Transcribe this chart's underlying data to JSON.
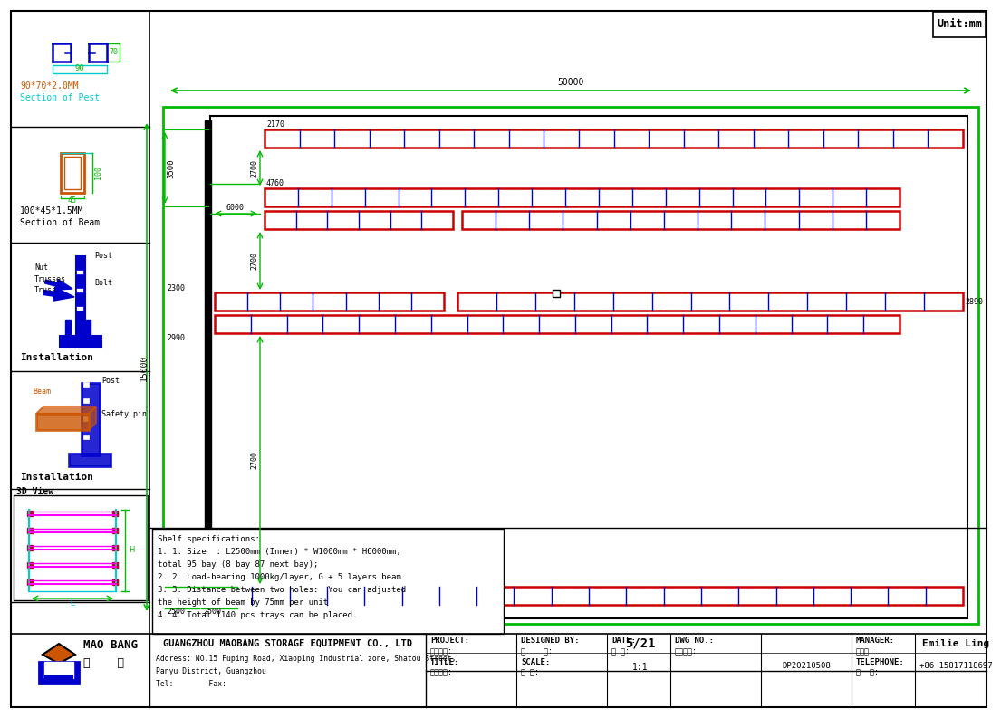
{
  "bg_color": "#ffffff",
  "green": "#00bb00",
  "red": "#cc0000",
  "blue": "#0000cc",
  "cyan": "#00cccc",
  "orange": "#cc5500",
  "shelf_specs": [
    "Shelf specifications:",
    "1. 1. Size  : L2500mm (Inner) * W1000mm * H6000mm,",
    "total 95 bay (8 bay 87 next bay);",
    "2. 2. Load-bearing 1000kg/layer, G + 5 layers beam",
    "3. 3. Distance between two holes:  You can adjusted",
    "the height of beam by 75mm per unit",
    "4. 4. Total 1140 pcs trays can be placed."
  ],
  "company": "GUANGZHOU MAOBANG STORAGE EQUIPMENT CO., LTD",
  "address": "Address: NO.15 Fuping Road, Xiaoping Industrial zone, Shatou Street,",
  "address2": "Panyu District, Guangzhou",
  "tel_line": "Tel:        Fax:",
  "project_label": "PROJECT:",
  "project_cn": "工程名称:",
  "designed_by": "DESIGNED BY:",
  "designed_cn": "设    计:",
  "date_label": "DATE:",
  "date_cn": "日 期:",
  "date_val": "5/21",
  "manager_label": "MANAGER:",
  "manager_cn": "负责人:",
  "manager_val": "Emilie Ling",
  "title_label": "TITLE:",
  "title_cn": "图纸名称:",
  "scale_label": "SCALE:",
  "scale_cn": "比 例:",
  "scale_val": "1:1",
  "dwg_label": "DWG NO.:",
  "dwg_cn": "图纸编号:",
  "dwg_val": "DP20210508",
  "tel_label": "TELEPHONE:",
  "tel_cn": "电  话:",
  "tel_val": "+86 15817118697",
  "unit_text": "Unit:mm",
  "dim_50000": "50000",
  "dim_2170": "2170",
  "dim_2700a": "2700",
  "dim_4760": "4760",
  "dim_6000": "6000",
  "dim_3500": "3500",
  "dim_15000": "15000",
  "dim_2700b": "2700",
  "dim_2300": "2300",
  "dim_2990": "2990",
  "dim_2500a": "2500",
  "dim_2500b": "2500",
  "dim_2700c": "2700",
  "dim_2890": "2890"
}
